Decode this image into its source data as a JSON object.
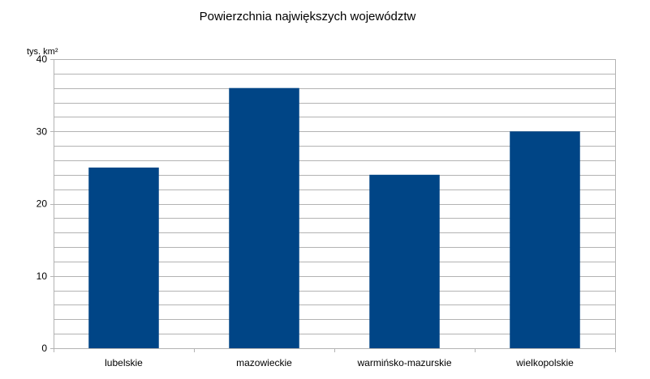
{
  "chart_data": {
    "type": "bar",
    "title": "Powierzchnia największych województw",
    "ylabel": "tys. km²",
    "xlabel": "",
    "categories": [
      "lubelskie",
      "mazowieckie",
      "warmińsko-mazurskie",
      "wielkopolskie"
    ],
    "values": [
      25,
      36,
      24,
      30
    ],
    "ylim": [
      0,
      40
    ],
    "yticks": [
      0,
      10,
      20,
      30,
      40
    ],
    "minor_grid_step": 2,
    "grid": true,
    "legend": "none",
    "bar_color": "#004586",
    "grid_color": "#b3b3b3"
  }
}
